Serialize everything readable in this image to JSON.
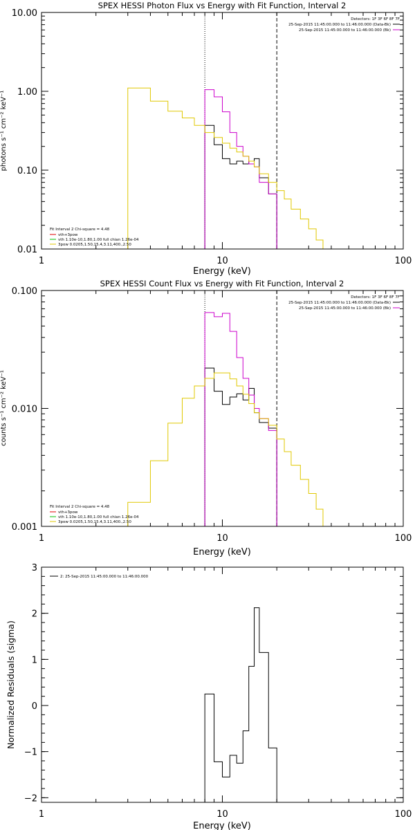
{
  "chart_data": [
    {
      "type": "line",
      "title": "SPEX HESSI Photon Flux vs Energy with Fit Function, Interval 2",
      "xlabel": "Energy (keV)",
      "ylabel": "photons s⁻¹ cm⁻² keV⁻¹",
      "xscale": "log",
      "yscale": "log",
      "xlim": [
        1,
        100
      ],
      "ylim": [
        0.01,
        10
      ],
      "x_ticks": [
        {
          "v": 1,
          "label": "1"
        },
        {
          "v": 10,
          "label": "10"
        },
        {
          "v": 100,
          "label": "100"
        }
      ],
      "y_ticks": [
        {
          "v": 0.01,
          "label": "0.01"
        },
        {
          "v": 0.1,
          "label": "0.10"
        },
        {
          "v": 1,
          "label": "1.00"
        },
        {
          "v": 10,
          "label": "10.00"
        }
      ],
      "fit_range_lines": [
        {
          "x": 8,
          "style": "dotted"
        },
        {
          "x": 20,
          "style": "dashed"
        }
      ],
      "header": [
        "Detectors: 1F 3F 6F 8F 7F",
        "25-Sep-2015 11:45:00.000 to 11:46:00.000 (Data-Bk)",
        "25-Sep-2015 11:45:00.000 to 11:46:00.000 (Bk)"
      ],
      "legend": [
        "Fit Interval 2   Chi-square = 4.48",
        "vth+3pow",
        "vth 1.10e-10,1.80,1.00  full chian 1.26e-04",
        "3pow 0.0205,1.50,15.4,3.11,400.,2.50"
      ],
      "series": [
        {
          "name": "Data-Bk",
          "color": "#000000",
          "edges": [
            8,
            9,
            10,
            11,
            12,
            13,
            14,
            15,
            16,
            18,
            20
          ],
          "values": [
            0.37,
            0.21,
            0.14,
            0.12,
            0.13,
            0.12,
            0.13,
            0.14,
            0.08,
            0.05
          ]
        },
        {
          "name": "Bk",
          "color": "#cc00cc",
          "edges": [
            8,
            9,
            10,
            11,
            12,
            13,
            14,
            15,
            16,
            18,
            20
          ],
          "values": [
            1.05,
            0.85,
            0.55,
            0.3,
            0.2,
            0.15,
            0.12,
            0.11,
            0.07,
            0.05
          ]
        },
        {
          "name": "vth+3pow",
          "color": "#e0c800",
          "edges": [
            3,
            4,
            5,
            6,
            7,
            8,
            9,
            10,
            11,
            12,
            13,
            14,
            15,
            16,
            18,
            20,
            22,
            24,
            27,
            30,
            33,
            36
          ],
          "values": [
            1.1,
            0.75,
            0.56,
            0.46,
            0.37,
            0.3,
            0.26,
            0.22,
            0.19,
            0.17,
            0.15,
            0.13,
            0.11,
            0.09,
            0.07,
            0.055,
            0.043,
            0.032,
            0.024,
            0.018,
            0.013
          ]
        }
      ]
    },
    {
      "type": "line",
      "title": "SPEX HESSI Count Flux vs Energy with Fit Function, Interval 2",
      "xlabel": "Energy (keV)",
      "ylabel": "counts s⁻¹ cm⁻² keV⁻¹",
      "xscale": "log",
      "yscale": "log",
      "xlim": [
        1,
        100
      ],
      "ylim": [
        0.001,
        0.1
      ],
      "x_ticks": [
        {
          "v": 1,
          "label": "1"
        },
        {
          "v": 10,
          "label": "10"
        },
        {
          "v": 100,
          "label": "100"
        }
      ],
      "y_ticks": [
        {
          "v": 0.001,
          "label": "0.001"
        },
        {
          "v": 0.01,
          "label": "0.010"
        },
        {
          "v": 0.1,
          "label": "0.100"
        }
      ],
      "fit_range_lines": [
        {
          "x": 8,
          "style": "dotted"
        },
        {
          "x": 20,
          "style": "dashed"
        }
      ],
      "header": [
        "Detectors: 1F 3F 6F 8F 7F",
        "25-Sep-2015 11:45:00.000 to 11:46:00.000 (Data-Bk)",
        "25-Sep-2015 11:45:00.000 to 11:46:00.000 (Bk)"
      ],
      "legend": [
        "Fit Interval 2   Chi-square = 4.48",
        "vth+3pow",
        "vth 1.10e-10,1.80,1.00  full chian 1.26e-04",
        "3pow 0.0205,1.50,15.4,3.11,400.,2.50"
      ],
      "series": [
        {
          "name": "Data-Bk",
          "color": "#000000",
          "edges": [
            8,
            9,
            10,
            11,
            12,
            13,
            14,
            15,
            16,
            18,
            20
          ],
          "values": [
            0.022,
            0.014,
            0.0108,
            0.0125,
            0.0133,
            0.0118,
            0.0148,
            0.0092,
            0.0076,
            0.0068
          ]
        },
        {
          "name": "Bk",
          "color": "#cc00cc",
          "edges": [
            8,
            9,
            10,
            11,
            12,
            13,
            14,
            15,
            16,
            18,
            20
          ],
          "values": [
            0.065,
            0.06,
            0.064,
            0.045,
            0.027,
            0.018,
            0.013,
            0.01,
            0.0082,
            0.0065
          ]
        },
        {
          "name": "vth+3pow",
          "color": "#e0c800",
          "edges": [
            3,
            4,
            5,
            6,
            7,
            8,
            9,
            10,
            11,
            12,
            13,
            14,
            15,
            16,
            18,
            20,
            22,
            24,
            27,
            30,
            33,
            36
          ],
          "values": [
            0.0016,
            0.0036,
            0.0075,
            0.0122,
            0.0155,
            0.018,
            0.02,
            0.02,
            0.0178,
            0.0155,
            0.0132,
            0.011,
            0.0092,
            0.0082,
            0.0072,
            0.0055,
            0.0043,
            0.0033,
            0.0025,
            0.0019,
            0.0014
          ]
        }
      ]
    },
    {
      "type": "line",
      "title": "",
      "xlabel": "Energy (keV)",
      "ylabel": "Normalized Residuals (sigma)",
      "xscale": "log",
      "yscale": "linear",
      "xlim": [
        1,
        100
      ],
      "ylim": [
        -2.1,
        3
      ],
      "x_ticks": [
        {
          "v": 1,
          "label": "1"
        },
        {
          "v": 10,
          "label": "10"
        },
        {
          "v": 100,
          "label": "100"
        }
      ],
      "y_ticks": [
        {
          "v": -2,
          "label": "−2"
        },
        {
          "v": -1,
          "label": "−1"
        },
        {
          "v": 0,
          "label": "0"
        },
        {
          "v": 1,
          "label": "1"
        },
        {
          "v": 2,
          "label": "2"
        },
        {
          "v": 3,
          "label": "3"
        }
      ],
      "legend": [
        "2: 25-Sep-2015 11:45:00.000 to 11:46:00.000"
      ],
      "series": [
        {
          "name": "",
          "color": "#000000",
          "edges": [
            8,
            9,
            10,
            11,
            12,
            13,
            14,
            15,
            16,
            18,
            20
          ],
          "values": [
            0.25,
            -1.22,
            -1.55,
            -1.08,
            -1.25,
            -0.55,
            0.85,
            2.12,
            1.15,
            -0.92
          ]
        }
      ]
    }
  ]
}
